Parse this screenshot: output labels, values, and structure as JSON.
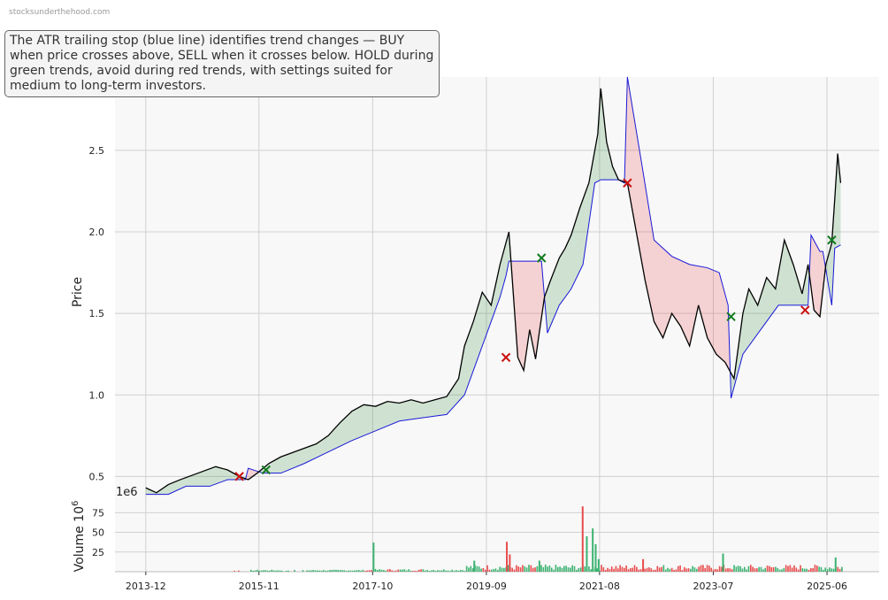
{
  "watermark": "stocksunderthehood.com",
  "annotation": "The ATR trailing stop (blue line) identifies trend changes — BUY when price crosses above, SELL when it crosses below. HOLD during green trends, avoid during red trends, with settings suited for medium to long-term investors.",
  "colors": {
    "price": "#000000",
    "stop": "#1a1ad8",
    "bull_fill": "#2e8b3a",
    "bear_fill": "#e8383d",
    "buy_marker": "#117a1f",
    "sell_marker": "#cc1111",
    "vol_up": "#3cb371",
    "vol_down": "#e84c4c",
    "panel_bg": "#f8f8f8",
    "grid": "#d0d0d0"
  },
  "chart_data": [
    {
      "type": "line",
      "ylabel": "Price",
      "xlim": [
        2013.4,
        2026.3
      ],
      "ylim": [
        0.35,
        2.95
      ],
      "yticks": [
        0.5,
        1.0,
        1.5,
        2.0,
        2.5
      ],
      "ytick_labels": [
        "0.5",
        "1.0",
        "1.5",
        "2.0",
        "2.5"
      ],
      "xticks": [
        2013.92,
        2015.83,
        2017.75,
        2019.67,
        2021.58,
        2023.5,
        2025.42
      ],
      "xtick_labels": [
        "2013-12",
        "2015-11",
        "2017-10",
        "2019-09",
        "2021-08",
        "2023-07",
        "2025-06"
      ],
      "grid": true,
      "series": [
        {
          "key": "price",
          "x": [
            2013.92,
            2014.1,
            2014.3,
            2014.5,
            2014.8,
            2015.1,
            2015.3,
            2015.5,
            2015.65,
            2015.8,
            2016.0,
            2016.2,
            2016.5,
            2016.8,
            2017.0,
            2017.2,
            2017.4,
            2017.6,
            2017.8,
            2018.0,
            2018.2,
            2018.4,
            2018.6,
            2018.8,
            2019.0,
            2019.2,
            2019.3,
            2019.45,
            2019.6,
            2019.75,
            2019.9,
            2020.05,
            2020.2,
            2020.3,
            2020.4,
            2020.5,
            2020.55,
            2020.65,
            2020.75,
            2020.9,
            2021.0,
            2021.1,
            2021.25,
            2021.4,
            2021.55,
            2021.6,
            2021.7,
            2021.8,
            2021.9,
            2022.05,
            2022.2,
            2022.35,
            2022.5,
            2022.65,
            2022.8,
            2022.95,
            2023.1,
            2023.25,
            2023.4,
            2023.55,
            2023.7,
            2023.85,
            2024.0,
            2024.1,
            2024.25,
            2024.4,
            2024.55,
            2024.7,
            2024.85,
            2025.0,
            2025.1,
            2025.2,
            2025.3,
            2025.4,
            2025.5,
            2025.55,
            2025.6,
            2025.65
          ],
          "y": [
            0.43,
            0.4,
            0.45,
            0.48,
            0.52,
            0.56,
            0.54,
            0.5,
            0.48,
            0.52,
            0.58,
            0.62,
            0.66,
            0.7,
            0.75,
            0.83,
            0.9,
            0.94,
            0.93,
            0.96,
            0.95,
            0.97,
            0.95,
            0.97,
            0.99,
            1.1,
            1.3,
            1.45,
            1.63,
            1.55,
            1.8,
            2.0,
            1.23,
            1.15,
            1.4,
            1.22,
            1.35,
            1.6,
            1.7,
            1.84,
            1.9,
            1.98,
            2.15,
            2.3,
            2.6,
            2.88,
            2.55,
            2.4,
            2.32,
            2.3,
            2.0,
            1.7,
            1.45,
            1.35,
            1.5,
            1.42,
            1.3,
            1.55,
            1.35,
            1.25,
            1.2,
            1.1,
            1.5,
            1.65,
            1.55,
            1.72,
            1.65,
            1.95,
            1.8,
            1.62,
            1.8,
            1.52,
            1.48,
            1.8,
            1.93,
            2.2,
            2.48,
            2.3
          ]
        },
        {
          "key": "stop",
          "x": [
            2013.92,
            2014.3,
            2014.6,
            2015.0,
            2015.3,
            2015.6,
            2015.65,
            2015.9,
            2016.2,
            2016.6,
            2017.0,
            2017.4,
            2017.8,
            2018.2,
            2018.6,
            2019.0,
            2019.3,
            2019.5,
            2019.7,
            2019.9,
            2020.0,
            2020.05,
            2020.6,
            2020.7,
            2020.9,
            2021.1,
            2021.3,
            2021.5,
            2021.6,
            2021.9,
            2022.0,
            2022.05,
            2022.3,
            2022.5,
            2022.8,
            2023.1,
            2023.4,
            2023.6,
            2023.75,
            2023.8,
            2024.0,
            2024.3,
            2024.6,
            2024.9,
            2025.1,
            2025.15,
            2025.3,
            2025.35,
            2025.5,
            2025.55,
            2025.65
          ],
          "y": [
            0.39,
            0.39,
            0.44,
            0.44,
            0.48,
            0.48,
            0.55,
            0.52,
            0.52,
            0.58,
            0.65,
            0.72,
            0.78,
            0.84,
            0.86,
            0.88,
            1.0,
            1.2,
            1.4,
            1.6,
            1.73,
            1.82,
            1.82,
            1.38,
            1.55,
            1.65,
            1.8,
            2.3,
            2.32,
            2.32,
            2.3,
            2.95,
            2.4,
            1.95,
            1.85,
            1.8,
            1.78,
            1.75,
            1.55,
            0.98,
            1.25,
            1.4,
            1.55,
            1.55,
            1.55,
            1.98,
            1.88,
            1.88,
            1.55,
            1.9,
            1.92
          ]
        }
      ],
      "buy_signals": [
        {
          "x": 2015.95,
          "y": 0.54
        },
        {
          "x": 2020.6,
          "y": 1.84
        },
        {
          "x": 2023.8,
          "y": 1.48
        },
        {
          "x": 2025.5,
          "y": 1.95
        }
      ],
      "sell_signals": [
        {
          "x": 2015.5,
          "y": 0.5
        },
        {
          "x": 2020.0,
          "y": 1.23
        },
        {
          "x": 2022.05,
          "y": 2.3
        },
        {
          "x": 2025.05,
          "y": 1.52
        }
      ]
    },
    {
      "type": "bar",
      "ylabel": "Volume",
      "ylabel_exponent": "10",
      "ylabel_exponent_power": "6",
      "offset_text": "1e6",
      "ylim": [
        0,
        90
      ],
      "yticks": [
        25,
        50,
        75
      ],
      "ytick_labels": [
        "25",
        "50",
        "75"
      ],
      "spikes": [
        {
          "x": 2017.75,
          "value": 37,
          "dir": "up"
        },
        {
          "x": 2019.45,
          "value": 14,
          "dir": "up"
        },
        {
          "x": 2020.0,
          "value": 38,
          "dir": "down"
        },
        {
          "x": 2020.05,
          "value": 22,
          "dir": "down"
        },
        {
          "x": 2020.55,
          "value": 14,
          "dir": "up"
        },
        {
          "x": 2021.28,
          "value": 83,
          "dir": "down"
        },
        {
          "x": 2021.35,
          "value": 45,
          "dir": "up"
        },
        {
          "x": 2021.45,
          "value": 55,
          "dir": "up"
        },
        {
          "x": 2021.5,
          "value": 35,
          "dir": "up"
        },
        {
          "x": 2021.55,
          "value": 16,
          "dir": "up"
        },
        {
          "x": 2022.3,
          "value": 16,
          "dir": "down"
        },
        {
          "x": 2023.65,
          "value": 23,
          "dir": "up"
        },
        {
          "x": 2025.55,
          "value": 18,
          "dir": "up"
        }
      ]
    }
  ]
}
